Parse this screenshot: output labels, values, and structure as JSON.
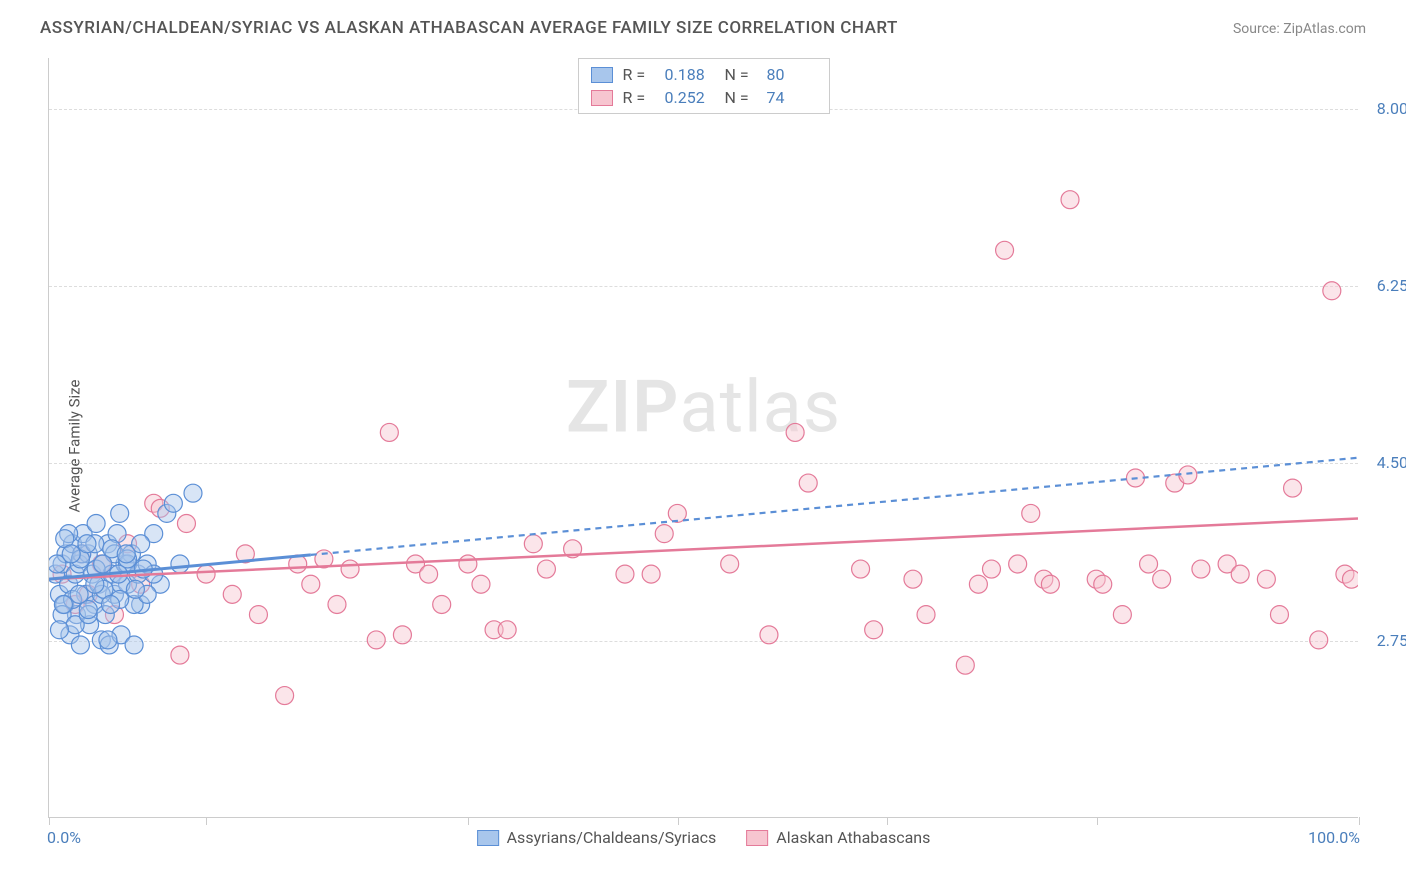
{
  "header": {
    "title": "ASSYRIAN/CHALDEAN/SYRIAC VS ALASKAN ATHABASCAN AVERAGE FAMILY SIZE CORRELATION CHART",
    "source": "Source: ZipAtlas.com"
  },
  "watermark": {
    "zip": "ZIP",
    "atlas": "atlas"
  },
  "chart": {
    "type": "scatter",
    "ylabel": "Average Family Size",
    "xlim": [
      0,
      100
    ],
    "ylim": [
      1.0,
      8.5
    ],
    "x_ticks": [
      0,
      12,
      32,
      48,
      64,
      80,
      100
    ],
    "y_gridlines": [
      2.75,
      4.5,
      6.25,
      8.0
    ],
    "y_tick_labels": [
      "2.75",
      "4.50",
      "6.25",
      "8.00"
    ],
    "x_axis_left_label": "0.0%",
    "x_axis_right_label": "100.0%",
    "background_color": "#ffffff",
    "grid_color": "#dddddd",
    "marker_radius": 9,
    "marker_opacity": 0.45,
    "series": {
      "blue": {
        "label": "Assyrians/Chaldeans/Syriacs",
        "fill": "#a8c6ec",
        "stroke": "#5b8fd6",
        "R": "0.188",
        "N": "80",
        "trend": {
          "start": [
            0,
            3.35
          ],
          "solid_end_x": 20,
          "end": [
            100,
            4.55
          ],
          "dash": "6,5",
          "width": 2.2
        },
        "points": [
          [
            0.5,
            3.4
          ],
          [
            0.8,
            3.2
          ],
          [
            1.0,
            3.5
          ],
          [
            1.2,
            3.1
          ],
          [
            1.3,
            3.6
          ],
          [
            1.5,
            3.3
          ],
          [
            1.6,
            2.8
          ],
          [
            1.8,
            3.7
          ],
          [
            2.0,
            3.4
          ],
          [
            2.1,
            3.0
          ],
          [
            2.3,
            3.5
          ],
          [
            2.4,
            2.7
          ],
          [
            2.6,
            3.8
          ],
          [
            2.8,
            3.2
          ],
          [
            3.0,
            3.6
          ],
          [
            3.1,
            2.9
          ],
          [
            3.3,
            3.4
          ],
          [
            3.5,
            3.1
          ],
          [
            3.6,
            3.9
          ],
          [
            3.8,
            3.3
          ],
          [
            4.0,
            2.75
          ],
          [
            4.1,
            3.5
          ],
          [
            4.3,
            3.0
          ],
          [
            4.5,
            3.7
          ],
          [
            4.6,
            2.7
          ],
          [
            4.8,
            3.4
          ],
          [
            5.0,
            3.2
          ],
          [
            5.2,
            3.8
          ],
          [
            5.4,
            4.0
          ],
          [
            5.5,
            2.8
          ],
          [
            5.8,
            3.5
          ],
          [
            6.0,
            3.3
          ],
          [
            6.3,
            3.6
          ],
          [
            6.5,
            2.7
          ],
          [
            6.8,
            3.4
          ],
          [
            7.0,
            3.1
          ],
          [
            7.5,
            3.5
          ],
          [
            8.0,
            3.8
          ],
          [
            8.5,
            3.3
          ],
          [
            9.0,
            4.0
          ],
          [
            9.5,
            4.1
          ],
          [
            10,
            3.5
          ],
          [
            11,
            4.2
          ],
          [
            1.0,
            3.0
          ],
          [
            1.5,
            3.8
          ],
          [
            2.0,
            2.9
          ],
          [
            2.5,
            3.6
          ],
          [
            3.0,
            3.0
          ],
          [
            3.5,
            3.7
          ],
          [
            4.0,
            3.2
          ],
          [
            4.5,
            2.75
          ],
          [
            5.0,
            3.6
          ],
          [
            5.5,
            3.3
          ],
          [
            6.0,
            3.5
          ],
          [
            6.5,
            3.1
          ],
          [
            7.0,
            3.7
          ],
          [
            7.5,
            3.2
          ],
          [
            8.0,
            3.4
          ],
          [
            0.8,
            2.85
          ],
          [
            1.2,
            3.75
          ],
          [
            1.8,
            3.15
          ],
          [
            2.4,
            3.55
          ],
          [
            3.0,
            3.05
          ],
          [
            3.6,
            3.45
          ],
          [
            4.2,
            3.25
          ],
          [
            4.8,
            3.65
          ],
          [
            5.4,
            3.15
          ],
          [
            6.0,
            3.55
          ],
          [
            6.6,
            3.25
          ],
          [
            7.2,
            3.45
          ],
          [
            0.6,
            3.5
          ],
          [
            1.1,
            3.1
          ],
          [
            1.7,
            3.6
          ],
          [
            2.3,
            3.2
          ],
          [
            2.9,
            3.7
          ],
          [
            3.5,
            3.3
          ],
          [
            4.1,
            3.5
          ],
          [
            4.7,
            3.1
          ],
          [
            5.3,
            3.4
          ],
          [
            5.9,
            3.6
          ]
        ]
      },
      "pink": {
        "label": "Alaskan Athabascans",
        "fill": "#f7c5d0",
        "stroke": "#e47a99",
        "R": "0.252",
        "N": "74",
        "trend": {
          "start": [
            0,
            3.35
          ],
          "end": [
            100,
            3.95
          ],
          "dash": "none",
          "width": 2.5
        },
        "points": [
          [
            1,
            3.4
          ],
          [
            2,
            3.1
          ],
          [
            2.5,
            3.6
          ],
          [
            3,
            3.2
          ],
          [
            4,
            3.5
          ],
          [
            5,
            3.0
          ],
          [
            6,
            3.7
          ],
          [
            7,
            3.3
          ],
          [
            8,
            4.1
          ],
          [
            8.5,
            4.05
          ],
          [
            10,
            2.6
          ],
          [
            10.5,
            3.9
          ],
          [
            12,
            3.4
          ],
          [
            14,
            3.2
          ],
          [
            15,
            3.6
          ],
          [
            16,
            3.0
          ],
          [
            18,
            2.2
          ],
          [
            19,
            3.5
          ],
          [
            20,
            3.3
          ],
          [
            21,
            3.55
          ],
          [
            22,
            3.1
          ],
          [
            23,
            3.45
          ],
          [
            25,
            2.75
          ],
          [
            26,
            4.8
          ],
          [
            27,
            2.8
          ],
          [
            28,
            3.5
          ],
          [
            29,
            3.4
          ],
          [
            30,
            3.1
          ],
          [
            32,
            3.5
          ],
          [
            33,
            3.3
          ],
          [
            34,
            2.85
          ],
          [
            35,
            2.85
          ],
          [
            37,
            3.7
          ],
          [
            38,
            3.45
          ],
          [
            40,
            3.65
          ],
          [
            46,
            3.4
          ],
          [
            47,
            3.8
          ],
          [
            48,
            4.0
          ],
          [
            55,
            2.8
          ],
          [
            57,
            4.8
          ],
          [
            58,
            4.3
          ],
          [
            62,
            3.45
          ],
          [
            63,
            2.85
          ],
          [
            66,
            3.35
          ],
          [
            67,
            3.0
          ],
          [
            70,
            2.5
          ],
          [
            71,
            3.3
          ],
          [
            72,
            3.45
          ],
          [
            73,
            6.6
          ],
          [
            74,
            3.5
          ],
          [
            75,
            4.0
          ],
          [
            76,
            3.35
          ],
          [
            76.5,
            3.3
          ],
          [
            78,
            7.1
          ],
          [
            80,
            3.35
          ],
          [
            80.5,
            3.3
          ],
          [
            82,
            3.0
          ],
          [
            83,
            4.35
          ],
          [
            84,
            3.5
          ],
          [
            85,
            3.35
          ],
          [
            86,
            4.3
          ],
          [
            87,
            4.38
          ],
          [
            88,
            3.45
          ],
          [
            90,
            3.5
          ],
          [
            91,
            3.4
          ],
          [
            93,
            3.35
          ],
          [
            94,
            3.0
          ],
          [
            95,
            4.25
          ],
          [
            97,
            2.75
          ],
          [
            98,
            6.2
          ],
          [
            99,
            3.4
          ],
          [
            99.5,
            3.35
          ],
          [
            52,
            3.5
          ],
          [
            44,
            3.4
          ]
        ]
      }
    }
  },
  "legend_top": {
    "rows": [
      {
        "sw_fill": "#a8c6ec",
        "sw_stroke": "#5b8fd6",
        "R_label": "R =",
        "R_val": "0.188",
        "N_label": "N =",
        "N_val": "80"
      },
      {
        "sw_fill": "#f7c5d0",
        "sw_stroke": "#e47a99",
        "R_label": "R =",
        "R_val": "0.252",
        "N_label": "N =",
        "N_val": "74"
      }
    ]
  },
  "legend_bottom": {
    "items": [
      {
        "sw_fill": "#a8c6ec",
        "sw_stroke": "#5b8fd6",
        "label": "Assyrians/Chaldeans/Syriacs"
      },
      {
        "sw_fill": "#f7c5d0",
        "sw_stroke": "#e47a99",
        "label": "Alaskan Athabascans"
      }
    ]
  }
}
